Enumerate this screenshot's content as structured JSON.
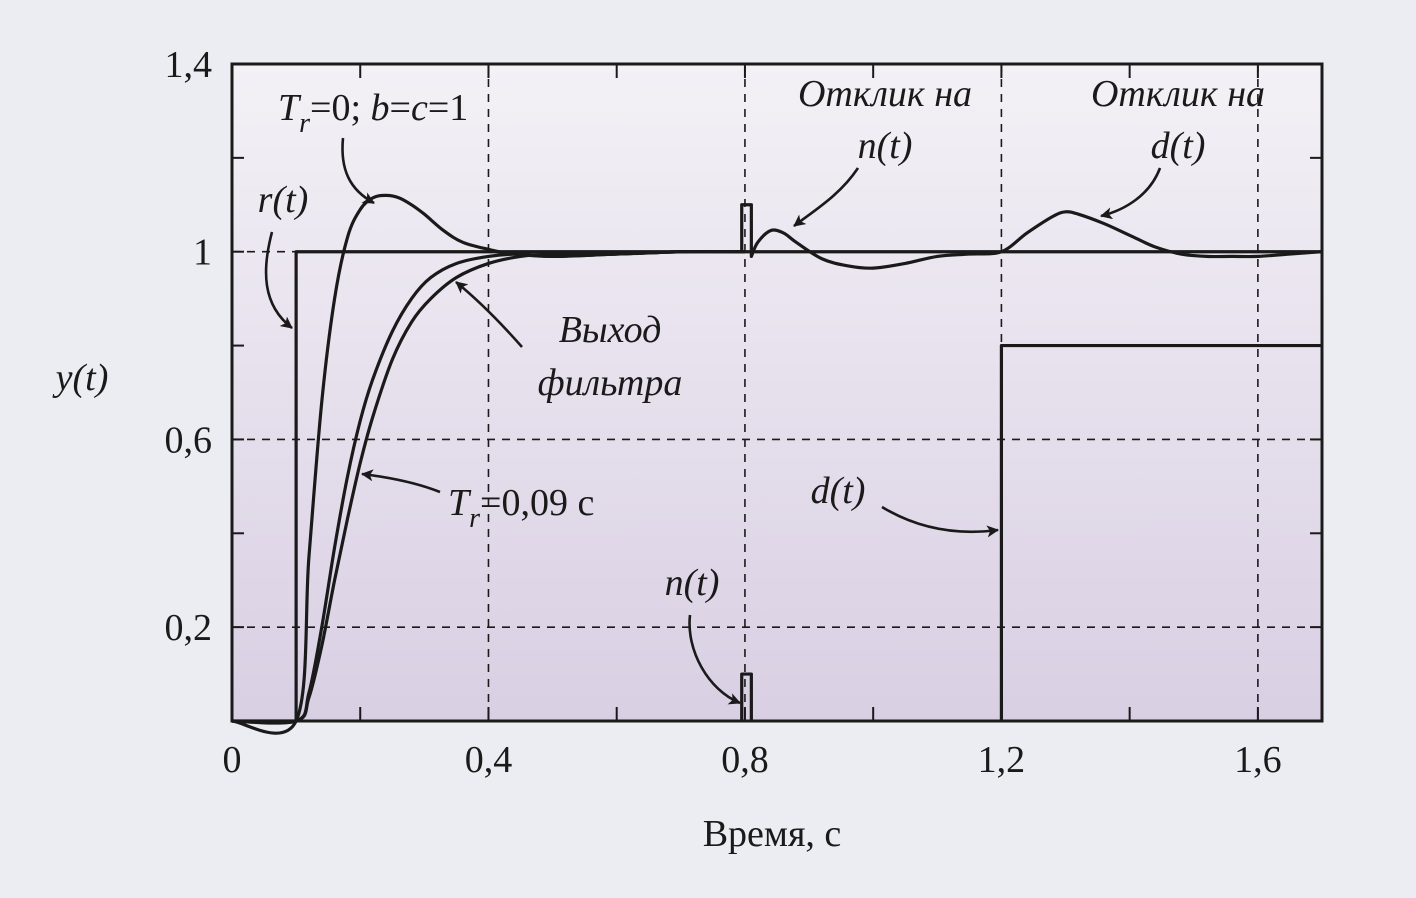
{
  "chart_data": {
    "type": "line",
    "title": "",
    "xlabel": "Время, с",
    "ylabel": "y(t)",
    "xlim": [
      0,
      1.7
    ],
    "ylim": [
      0,
      1.4
    ],
    "x_ticks": [
      {
        "value": 0,
        "label": "0"
      },
      {
        "value": 0.4,
        "label": "0,4"
      },
      {
        "value": 0.8,
        "label": "0,8"
      },
      {
        "value": 1.2,
        "label": "1,2"
      },
      {
        "value": 1.6,
        "label": "1,6"
      }
    ],
    "y_ticks": [
      {
        "value": 0.2,
        "label": "0,2"
      },
      {
        "value": 0.6,
        "label": "0,6"
      },
      {
        "value": 1.0,
        "label": "1"
      },
      {
        "value": 1.4,
        "label": "1,4"
      }
    ],
    "grid": "dashed at 0.2, 0.6, 1.0 (y) and 0.4, 0.8, 1.2, 1.6 (x)",
    "colors": {
      "background_top": "#f3f1f6",
      "background_bottom": "#d9cfe3",
      "line": "#1a1a1a"
    },
    "series": [
      {
        "name": "r(t)",
        "x": [
          0,
          0.1,
          0.1,
          1.7
        ],
        "y": [
          0,
          0,
          1,
          1
        ]
      },
      {
        "name": "Tr=0; b=c=1",
        "x": [
          0,
          0.1,
          0.12,
          0.14,
          0.16,
          0.18,
          0.2,
          0.22,
          0.24,
          0.26,
          0.28,
          0.3,
          0.33,
          0.36,
          0.4,
          0.44,
          0.5,
          0.6,
          0.7,
          0.8
        ],
        "y": [
          0,
          0,
          0.35,
          0.68,
          0.9,
          1.03,
          1.09,
          1.115,
          1.12,
          1.115,
          1.1,
          1.08,
          1.045,
          1.02,
          1.005,
          0.995,
          0.99,
          0.995,
          1.0,
          1.0
        ]
      },
      {
        "name": "Tr=0,09 с",
        "x": [
          0,
          0.1,
          0.12,
          0.14,
          0.16,
          0.18,
          0.2,
          0.22,
          0.25,
          0.28,
          0.31,
          0.35,
          0.4,
          0.45,
          0.5,
          0.6,
          0.7,
          0.8
        ],
        "y": [
          0,
          0,
          0.06,
          0.2,
          0.37,
          0.52,
          0.64,
          0.73,
          0.83,
          0.9,
          0.945,
          0.975,
          0.99,
          0.995,
          0.99,
          0.995,
          1.0,
          1.0
        ]
      },
      {
        "name": "Выход фильтра",
        "x": [
          0,
          0.1,
          0.12,
          0.14,
          0.16,
          0.18,
          0.2,
          0.22,
          0.25,
          0.28,
          0.31,
          0.35,
          0.4,
          0.45,
          0.5,
          0.6,
          0.7,
          0.8
        ],
        "y": [
          0,
          0,
          0.05,
          0.16,
          0.3,
          0.43,
          0.55,
          0.65,
          0.77,
          0.85,
          0.9,
          0.945,
          0.975,
          0.99,
          0.995,
          0.995,
          1.0,
          1.0
        ]
      },
      {
        "name": "n(t)",
        "x": [
          0.795,
          0.795,
          0.81,
          0.81
        ],
        "y": [
          0,
          0.1,
          0.1,
          0
        ]
      },
      {
        "name": "Отклик на n(t)",
        "x": [
          0.8,
          0.795,
          0.795,
          0.81,
          0.81,
          0.82,
          0.84,
          0.86,
          0.88,
          0.92,
          0.96,
          1.0,
          1.05,
          1.1,
          1.15,
          1.2,
          1.24,
          1.28,
          1.3,
          1.32,
          1.36,
          1.4,
          1.44,
          1.48,
          1.52,
          1.56,
          1.6,
          1.65,
          1.7
        ],
        "y": [
          1.0,
          1.0,
          1.1,
          1.1,
          0.99,
          1.02,
          1.045,
          1.04,
          1.02,
          0.985,
          0.97,
          0.965,
          0.975,
          0.99,
          0.995,
          1.0,
          1.04,
          1.075,
          1.085,
          1.08,
          1.06,
          1.035,
          1.01,
          0.995,
          0.99,
          0.99,
          0.99,
          0.995,
          1.0
        ]
      },
      {
        "name": "d(t)",
        "x": [
          1.2,
          1.2,
          1.7
        ],
        "y": [
          0,
          0.8,
          0.8
        ]
      }
    ],
    "annotations": [
      {
        "text": "r(t)",
        "points_to": [
          0.1,
          0.85
        ]
      },
      {
        "text_parts": [
          "T",
          "r",
          "=0; ",
          "b",
          "=",
          "c",
          "=1"
        ],
        "points_to": [
          0.22,
          1.11
        ]
      },
      {
        "text_parts": [
          "Выход",
          "фильтра"
        ],
        "points_to": [
          0.35,
          0.94
        ]
      },
      {
        "text_parts": [
          "T",
          "r",
          "=0,09 с"
        ],
        "points_to": [
          0.2,
          0.52
        ]
      },
      {
        "text_parts": [
          "Отклик на",
          "n(t)"
        ],
        "points_to": [
          0.84,
          1.05
        ]
      },
      {
        "text_parts": [
          "Отклик на",
          "d(t)"
        ],
        "points_to": [
          1.32,
          1.08
        ]
      },
      {
        "text": "n(t)",
        "points_to": [
          0.795,
          0.05
        ]
      },
      {
        "text": "d(t)",
        "points_to": [
          1.2,
          0.4
        ]
      }
    ]
  }
}
